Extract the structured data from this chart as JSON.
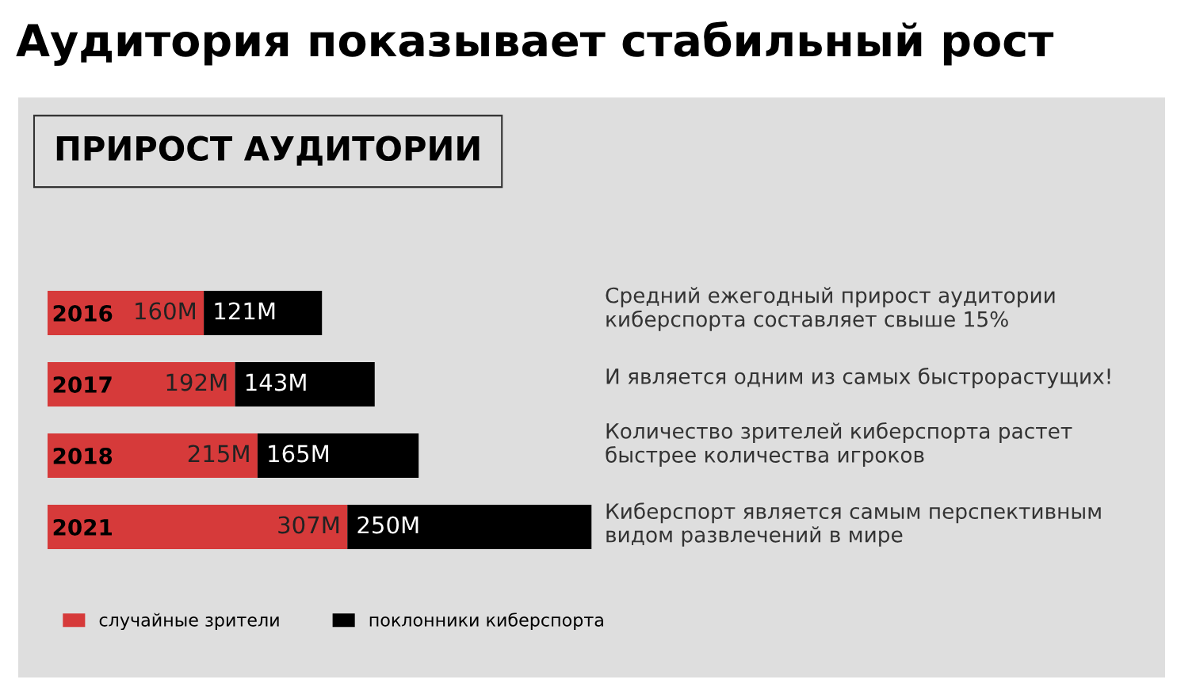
{
  "chart_data": {
    "type": "bar",
    "orientation": "horizontal",
    "stacked": true,
    "title": "Аудитория показывает стабильный рост",
    "subtitle": "ПРИРОСТ АУДИТОРИИ",
    "categories": [
      "2016",
      "2017",
      "2018",
      "2021"
    ],
    "series": [
      {
        "name": "случайные зрители",
        "color": "#d63a3a",
        "values": [
          160,
          192,
          215,
          307
        ],
        "value_labels": [
          "160M",
          "192M",
          "215M",
          "307M"
        ]
      },
      {
        "name": "поклонники киберспорта",
        "color": "#000000",
        "values": [
          121,
          143,
          165,
          250
        ],
        "value_labels": [
          "121M",
          "143M",
          "165M",
          "250M"
        ]
      }
    ],
    "legend": "bottom",
    "annotations": [
      "Средний ежегодный прирост аудитории\nкиберспорта составляет свыше 15%",
      "И является одним из самых быстрорастущих!",
      "Количество зрителей киберспорта растет\nбыстрее количества игроков",
      "Киберспорт является самым перспективным\nвидом развлечений в мире"
    ]
  }
}
